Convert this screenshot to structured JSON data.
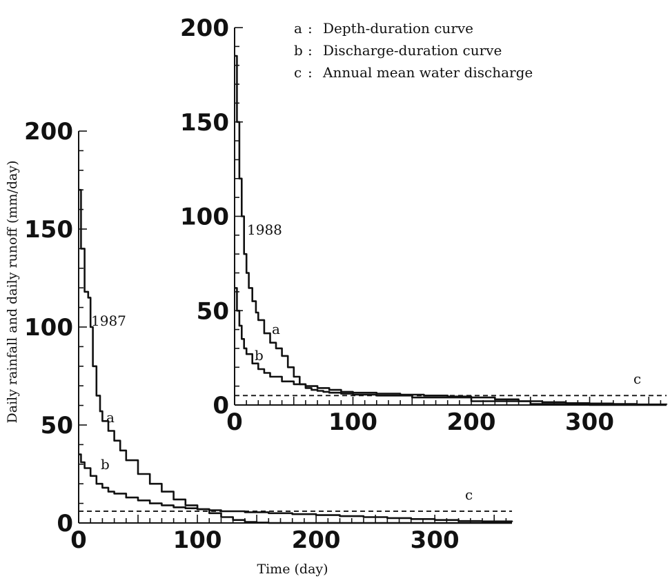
{
  "chart_data": [
    {
      "type": "line",
      "panel_label": "1987",
      "xlim": [
        0,
        365
      ],
      "ylim": [
        0,
        200
      ],
      "x_ticks": [
        "0",
        "100",
        "200",
        "300"
      ],
      "y_ticks": [
        "0",
        "50",
        "100",
        "150",
        "200"
      ],
      "series": [
        {
          "name": "a",
          "x": [
            0,
            2,
            5,
            8,
            10,
            12,
            15,
            18,
            20,
            25,
            30,
            35,
            40,
            50,
            60,
            70,
            80,
            90,
            100,
            110,
            120,
            130,
            140,
            150,
            160,
            180,
            200,
            250,
            300,
            365
          ],
          "y": [
            170,
            140,
            118,
            115,
            100,
            80,
            65,
            57,
            52,
            47,
            42,
            37,
            32,
            25,
            20,
            16,
            12,
            9,
            7,
            5,
            3,
            1.5,
            0.5,
            0.2,
            0,
            0,
            0,
            0,
            0,
            0
          ]
        },
        {
          "name": "b",
          "x": [
            0,
            2,
            5,
            10,
            15,
            20,
            25,
            30,
            40,
            50,
            60,
            70,
            80,
            90,
            100,
            110,
            120,
            140,
            160,
            180,
            200,
            220,
            240,
            260,
            280,
            300,
            320,
            340,
            365
          ],
          "y": [
            35,
            31,
            28,
            24,
            20,
            18,
            16,
            15,
            13,
            11.5,
            10,
            9,
            8,
            7.5,
            7,
            6.5,
            6,
            5.5,
            5,
            4.5,
            4,
            3.5,
            3,
            2.5,
            2,
            1.5,
            1,
            0.8,
            0.5
          ]
        },
        {
          "name": "c",
          "x": [
            0,
            365
          ],
          "y": [
            6,
            6
          ]
        }
      ],
      "series_labels": [
        "a",
        "b",
        "c"
      ]
    },
    {
      "type": "line",
      "panel_label": "1988",
      "xlim": [
        0,
        365
      ],
      "ylim": [
        0,
        200
      ],
      "x_ticks": [
        "0",
        "100",
        "200",
        "300"
      ],
      "y_ticks": [
        "0",
        "50",
        "100",
        "150",
        "200"
      ],
      "series": [
        {
          "name": "a",
          "x": [
            0,
            2,
            4,
            6,
            8,
            10,
            12,
            15,
            18,
            20,
            25,
            30,
            35,
            40,
            45,
            50,
            55,
            60,
            65,
            70,
            75,
            80,
            90,
            100,
            120,
            150,
            200,
            250,
            300,
            365
          ],
          "y": [
            185,
            150,
            120,
            100,
            80,
            70,
            62,
            55,
            49,
            45,
            38,
            33,
            30,
            26,
            20,
            15,
            11,
            9,
            8,
            7.5,
            7,
            6.5,
            6,
            5.5,
            5,
            4,
            2,
            0.5,
            0,
            0
          ]
        },
        {
          "name": "b",
          "x": [
            0,
            2,
            4,
            6,
            8,
            10,
            15,
            20,
            25,
            30,
            40,
            50,
            60,
            70,
            80,
            90,
            100,
            120,
            140,
            160,
            180,
            200,
            220,
            240,
            260,
            280,
            300,
            320,
            340,
            365
          ],
          "y": [
            62,
            50,
            42,
            35,
            30,
            27,
            22,
            19,
            17,
            15,
            12.5,
            11,
            10,
            9,
            8,
            7,
            6.5,
            6,
            5.5,
            5,
            4.5,
            4,
            3,
            2,
            1.5,
            1,
            0.8,
            0.5,
            0.3,
            0.2
          ]
        },
        {
          "name": "c",
          "x": [
            0,
            365
          ],
          "y": [
            5,
            5
          ]
        }
      ],
      "series_labels": [
        "a",
        "b",
        "c"
      ]
    }
  ],
  "ylabel": "Daily rainfall and daily runoff (mm/day)",
  "xlabel": "Time (day)",
  "legend": [
    {
      "key": "a",
      "sep": ":",
      "text": "Depth-duration curve"
    },
    {
      "key": "b",
      "sep": ":",
      "text": "Discharge-duration curve"
    },
    {
      "key": "c",
      "sep": ":",
      "text": "Annual mean water discharge"
    }
  ]
}
